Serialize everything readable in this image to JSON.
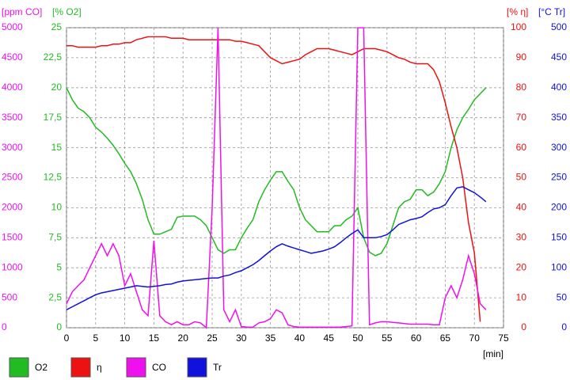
{
  "chart_data": {
    "type": "line",
    "x_label": "[min]",
    "xlim": [
      0,
      75
    ],
    "xticks": [
      0,
      5,
      10,
      15,
      20,
      25,
      30,
      35,
      40,
      45,
      50,
      55,
      60,
      65,
      70,
      75
    ],
    "grid": true,
    "x": [
      0,
      1,
      2,
      3,
      4,
      5,
      6,
      7,
      8,
      9,
      10,
      11,
      12,
      13,
      14,
      15,
      16,
      17,
      18,
      19,
      20,
      21,
      22,
      23,
      24,
      25,
      26,
      27,
      28,
      29,
      30,
      31,
      32,
      33,
      34,
      35,
      36,
      37,
      38,
      39,
      40,
      41,
      42,
      43,
      44,
      45,
      46,
      47,
      48,
      49,
      50,
      51,
      52,
      53,
      54,
      55,
      56,
      57,
      58,
      59,
      60,
      61,
      62,
      63,
      64,
      65,
      66,
      67,
      68,
      69,
      70,
      71,
      72
    ],
    "series": [
      {
        "name": "O2",
        "color": "#22bb22",
        "axis_label": "[% O2]",
        "side": "left",
        "ylim": [
          0,
          25
        ],
        "yticks": [
          0,
          {
            "value": 2.5,
            "label": "2,5"
          },
          5,
          {
            "value": 7.5,
            "label": "7,5"
          },
          10,
          {
            "value": 12.5,
            "label": "12,5"
          },
          15,
          {
            "value": 17.5,
            "label": "17,5"
          },
          20,
          {
            "value": 22.5,
            "label": "22,5"
          },
          25
        ],
        "values": [
          20,
          19,
          18.3,
          18,
          17.5,
          16.7,
          16.3,
          15.8,
          15.2,
          14.5,
          13.7,
          13,
          12,
          10.7,
          9,
          7.8,
          7.8,
          8,
          8.2,
          9.2,
          9.3,
          9.3,
          9.3,
          9,
          8.5,
          7.5,
          6.5,
          6.2,
          6.5,
          6.5,
          7.5,
          8.3,
          9,
          10.5,
          11.5,
          12.3,
          13,
          13,
          12.2,
          11.5,
          10,
          9,
          8.5,
          8,
          8,
          8,
          8.5,
          8.5,
          9,
          9.3,
          10,
          7.5,
          6.3,
          6,
          6.2,
          7,
          8.5,
          10,
          10.5,
          10.7,
          11.5,
          11.5,
          11,
          11.3,
          12,
          13,
          15,
          16.5,
          17.5,
          18.2,
          19,
          19.5,
          20
        ]
      },
      {
        "name": "η",
        "color": "#ee1111",
        "axis_label": "[% η]",
        "side": "right",
        "ylim": [
          0,
          100
        ],
        "yticks": [
          0,
          10,
          20,
          30,
          40,
          50,
          60,
          70,
          80,
          90,
          100
        ],
        "values": [
          94,
          94,
          93.5,
          93.5,
          93.5,
          93.5,
          94,
          94,
          94.5,
          94.5,
          95,
          95,
          96,
          96.5,
          97,
          97,
          97,
          97,
          96.5,
          96.5,
          96.5,
          96,
          96,
          96,
          96,
          96,
          96,
          96,
          96,
          95.5,
          95.5,
          95,
          94.5,
          94,
          92,
          90,
          89,
          88,
          88.5,
          89,
          89.5,
          91,
          92,
          93,
          93,
          93,
          92.5,
          92,
          91.5,
          91,
          92,
          93,
          93,
          93,
          92.5,
          92,
          91,
          90,
          89.5,
          88.5,
          88,
          88,
          88,
          86,
          82,
          75,
          67,
          60,
          50,
          35,
          25,
          2,
          null
        ]
      },
      {
        "name": "CO",
        "color": "#ee11ee",
        "axis_label": "[ppm CO]",
        "side": "left",
        "ylim": [
          0,
          5000
        ],
        "yticks": [
          0,
          500,
          1000,
          1500,
          2000,
          2500,
          3000,
          3500,
          4000,
          4500,
          5000
        ],
        "values": [
          400,
          600,
          700,
          800,
          1000,
          1200,
          1400,
          1200,
          1400,
          1200,
          700,
          900,
          600,
          300,
          200,
          1450,
          200,
          100,
          50,
          100,
          50,
          50,
          100,
          80,
          0,
          2000,
          5000,
          300,
          100,
          300,
          20,
          10,
          10,
          80,
          100,
          150,
          300,
          250,
          50,
          20,
          10,
          10,
          10,
          10,
          10,
          10,
          10,
          10,
          20,
          30,
          5000,
          5000,
          50,
          80,
          100,
          100,
          90,
          80,
          70,
          60,
          60,
          60,
          60,
          50,
          50,
          500,
          700,
          500,
          800,
          1200,
          900,
          400,
          300
        ]
      },
      {
        "name": "Tr",
        "color": "#1111dd",
        "axis_label": "[°C Tr]",
        "side": "right",
        "ylim": [
          0,
          500
        ],
        "yticks": [
          0,
          50,
          100,
          150,
          200,
          250,
          300,
          350,
          400,
          450,
          500
        ],
        "values": [
          30,
          35,
          40,
          45,
          50,
          55,
          58,
          60,
          62,
          64,
          66,
          68,
          70,
          69,
          68,
          69,
          70,
          72,
          73,
          76,
          78,
          79,
          80,
          81,
          82,
          83,
          83,
          86,
          88,
          92,
          95,
          100,
          105,
          112,
          120,
          128,
          135,
          140,
          136,
          133,
          130,
          127,
          124,
          126,
          128,
          131,
          135,
          142,
          150,
          157,
          163,
          150,
          150,
          150,
          152,
          155,
          163,
          172,
          176,
          180,
          182,
          185,
          192,
          198,
          200,
          205,
          220,
          233,
          235,
          230,
          225,
          218,
          210
        ]
      }
    ]
  }
}
